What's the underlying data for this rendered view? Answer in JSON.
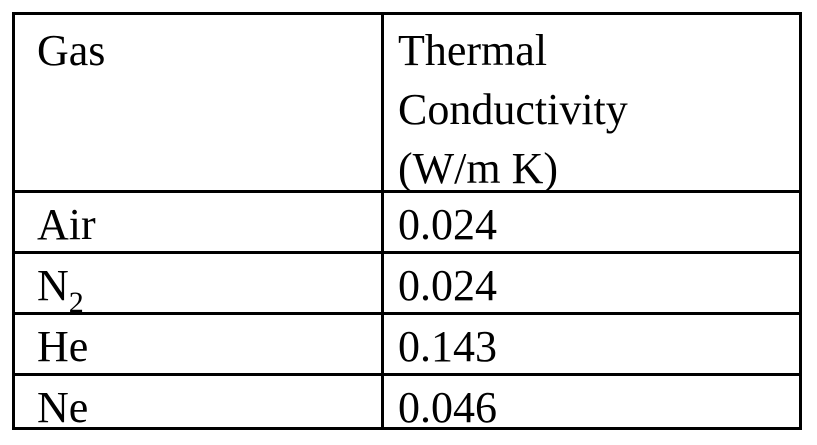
{
  "table": {
    "header": {
      "gas_label": "Gas",
      "conductivity_lines": [
        "Thermal",
        "Conductivity",
        "(W/m K)"
      ]
    },
    "rows": [
      {
        "gas": "Air",
        "gas_subscript": "",
        "value": "0.024"
      },
      {
        "gas": "N",
        "gas_subscript": "2",
        "value": "0.024"
      },
      {
        "gas": "He",
        "gas_subscript": "",
        "value": "0.143"
      },
      {
        "gas": "Ne",
        "gas_subscript": "",
        "value": "0.046"
      }
    ]
  }
}
